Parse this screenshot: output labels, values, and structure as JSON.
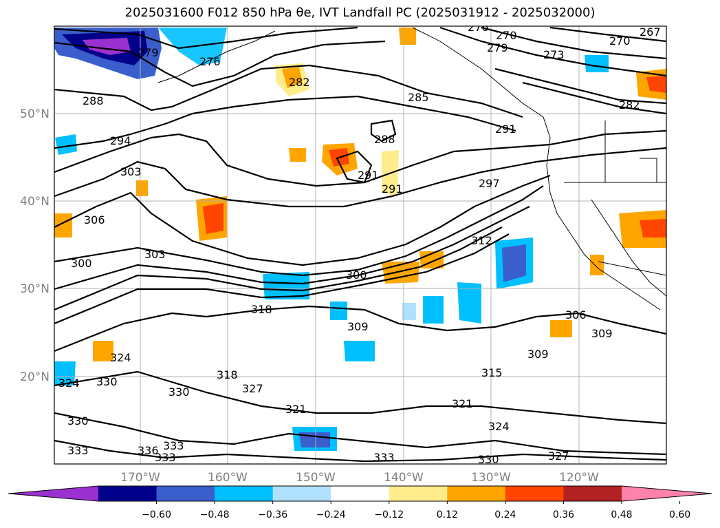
{
  "title": "2025031600 F012 850 hPa θe, IVT Landfall PC (2025031912 - 2025032000)",
  "map": {
    "lat_ticks": [
      {
        "lat": 50,
        "label": "50°N"
      },
      {
        "lat": 40,
        "label": "40°N"
      },
      {
        "lat": 30,
        "label": "30°N"
      },
      {
        "lat": 20,
        "label": "20°N"
      }
    ],
    "lon_ticks": [
      {
        "lon": -170,
        "label": "170°W"
      },
      {
        "lon": -160,
        "label": "160°W"
      },
      {
        "lon": -150,
        "label": "150°W"
      },
      {
        "lon": -140,
        "label": "140°W"
      },
      {
        "lon": -130,
        "label": "130°W"
      },
      {
        "lon": -120,
        "label": "120°W"
      }
    ],
    "contour_labels": [
      "279",
      "276",
      "282",
      "285",
      "288",
      "291",
      "294",
      "297",
      "300",
      "303",
      "306",
      "309",
      "312",
      "315",
      "318",
      "321",
      "324",
      "327",
      "330",
      "333",
      "336",
      "270",
      "267",
      "273"
    ]
  },
  "colorbar": {
    "ticks": [
      "−0.60",
      "−0.48",
      "−0.36",
      "−0.24",
      "−0.12",
      "0.12",
      "0.24",
      "0.36",
      "0.48",
      "0.60"
    ],
    "colors": [
      "#9b30d0",
      "#00008b",
      "#3a5fcd",
      "#00bfff",
      "#b0e2ff",
      "#ffffff",
      "#ffec8b",
      "#ffa500",
      "#ff4500",
      "#b22222",
      "#ff82ab"
    ]
  }
}
